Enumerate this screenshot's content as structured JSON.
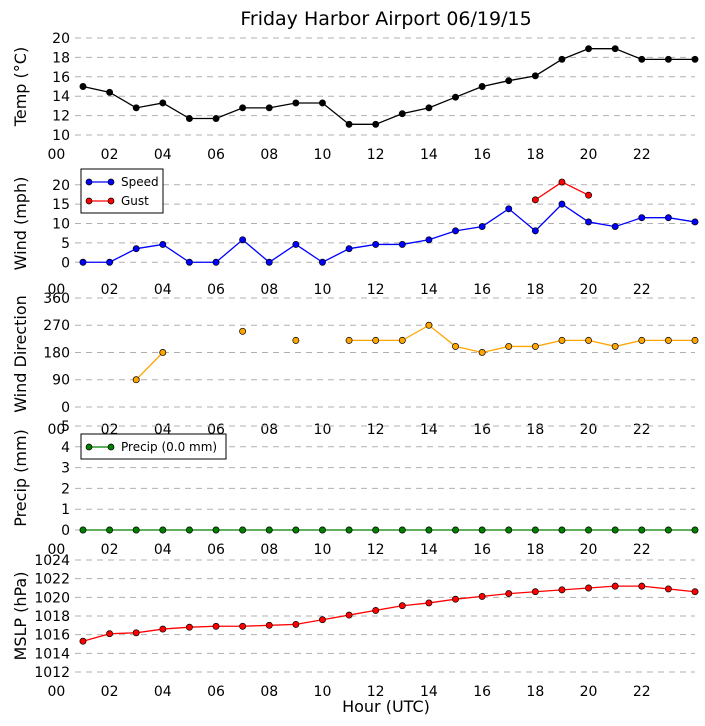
{
  "figure": {
    "title": "Friday Harbor Airport 06/19/15",
    "xlabel": "Hour (UTC)"
  },
  "chart_data": [
    {
      "type": "line",
      "id": "temp",
      "ylabel": "Temp (°C)",
      "ylim": [
        10,
        20
      ],
      "yticks": [
        10,
        12,
        14,
        16,
        18,
        20
      ],
      "xlim": [
        0.7,
        24
      ],
      "xticks": [
        "00",
        "02",
        "04",
        "06",
        "08",
        "10",
        "12",
        "14",
        "16",
        "18",
        "20",
        "22"
      ],
      "show_xtick_labels": true,
      "legend": null,
      "series": [
        {
          "name": "Temp",
          "color": "#000000",
          "hours": [
            1,
            2,
            3,
            4,
            5,
            6,
            7,
            8,
            9,
            10,
            11,
            12,
            13,
            14,
            15,
            16,
            17,
            18,
            19,
            20,
            21,
            22,
            23,
            24
          ],
          "values": [
            15.0,
            14.4,
            12.8,
            13.3,
            11.7,
            11.7,
            12.8,
            12.8,
            13.3,
            13.3,
            11.1,
            11.1,
            12.2,
            12.8,
            13.9,
            15.0,
            15.6,
            16.1,
            17.8,
            18.9,
            18.9,
            17.8,
            17.8,
            17.8
          ]
        }
      ]
    },
    {
      "type": "line",
      "id": "wind",
      "ylabel": "Wind (mph)",
      "ylim": [
        -2,
        22
      ],
      "yticks": [
        0,
        5,
        10,
        15,
        20
      ],
      "xlim": [
        0.7,
        24
      ],
      "xticks": [
        "00",
        "02",
        "04",
        "06",
        "08",
        "10",
        "12",
        "14",
        "16",
        "18",
        "20",
        "22"
      ],
      "show_xtick_labels": true,
      "legend": "top-left",
      "series": [
        {
          "name": "Speed",
          "color": "#0000ff",
          "hours": [
            1,
            2,
            3,
            4,
            5,
            6,
            7,
            8,
            9,
            10,
            11,
            12,
            13,
            14,
            15,
            16,
            17,
            18,
            19,
            20,
            21,
            22,
            23,
            24
          ],
          "values": [
            0,
            0,
            3.5,
            4.6,
            0,
            0,
            5.8,
            0,
            4.6,
            0,
            3.5,
            4.6,
            4.6,
            5.8,
            8.1,
            9.2,
            13.8,
            8.1,
            15.0,
            10.4,
            9.2,
            11.5,
            11.5,
            10.4
          ]
        },
        {
          "name": "Gust",
          "color": "#ff0000",
          "hours": [
            18,
            19,
            20
          ],
          "values": [
            16.1,
            20.7,
            17.3
          ]
        }
      ]
    },
    {
      "type": "line",
      "id": "wdir",
      "ylabel": "Wind Direction",
      "ylim": [
        -10,
        360
      ],
      "yticks": [
        0,
        90,
        180,
        270,
        360
      ],
      "xlim": [
        0.7,
        24
      ],
      "xticks": [
        "00",
        "02",
        "04",
        "06",
        "08",
        "10",
        "12",
        "14",
        "16",
        "18",
        "20",
        "22"
      ],
      "show_xtick_labels": true,
      "legend": null,
      "series": [
        {
          "name": "Direction",
          "color": "#ffa500",
          "hours": [
            1,
            2,
            3,
            4,
            5,
            6,
            7,
            8,
            9,
            10,
            11,
            12,
            13,
            14,
            15,
            16,
            17,
            18,
            19,
            20,
            21,
            22,
            23,
            24
          ],
          "values": [
            null,
            null,
            90,
            180,
            null,
            null,
            250,
            null,
            220,
            null,
            220,
            220,
            220,
            270,
            200,
            180,
            200,
            200,
            220,
            220,
            200,
            220,
            220,
            220
          ]
        }
      ]
    },
    {
      "type": "line",
      "id": "precip",
      "ylabel": "Precip (mm)",
      "ylim": [
        0,
        5
      ],
      "yticks": [
        0,
        1,
        2,
        3,
        4,
        5
      ],
      "xlim": [
        0.7,
        24
      ],
      "xticks": [
        "00",
        "02",
        "04",
        "06",
        "08",
        "10",
        "12",
        "14",
        "16",
        "18",
        "20",
        "22"
      ],
      "show_xtick_labels": true,
      "legend": "top-left",
      "series": [
        {
          "name": "Precip (0.0 mm)",
          "color": "#008000",
          "hours": [
            1,
            2,
            3,
            4,
            5,
            6,
            7,
            8,
            9,
            10,
            11,
            12,
            13,
            14,
            15,
            16,
            17,
            18,
            19,
            20,
            21,
            22,
            23,
            24
          ],
          "values": [
            0,
            0,
            0,
            0,
            0,
            0,
            0,
            0,
            0,
            0,
            0,
            0,
            0,
            0,
            0,
            0,
            0,
            0,
            0,
            0,
            0,
            0,
            0,
            0
          ]
        }
      ]
    },
    {
      "type": "line",
      "id": "mslp",
      "ylabel": "MSLP (hPa)",
      "ylim": [
        1012,
        1024
      ],
      "yticks": [
        1012,
        1014,
        1016,
        1018,
        1020,
        1022,
        1024
      ],
      "xlim": [
        0.7,
        24
      ],
      "xticks": [
        "00",
        "02",
        "04",
        "06",
        "08",
        "10",
        "12",
        "14",
        "16",
        "18",
        "20",
        "22"
      ],
      "show_xtick_labels": true,
      "legend": null,
      "series": [
        {
          "name": "MSLP",
          "color": "#ff0000",
          "hours": [
            1,
            2,
            3,
            4,
            5,
            6,
            7,
            8,
            9,
            10,
            11,
            12,
            13,
            14,
            15,
            16,
            17,
            18,
            19,
            20,
            21,
            22,
            23,
            24
          ],
          "values": [
            1015.3,
            1016.1,
            1016.2,
            1016.6,
            1016.8,
            1016.9,
            1016.9,
            1017.0,
            1017.1,
            1017.6,
            1018.1,
            1018.6,
            1019.1,
            1019.4,
            1019.8,
            1020.1,
            1020.4,
            1020.6,
            1020.8,
            1021.0,
            1021.2,
            1021.2,
            1020.9,
            1020.6
          ]
        }
      ]
    }
  ]
}
